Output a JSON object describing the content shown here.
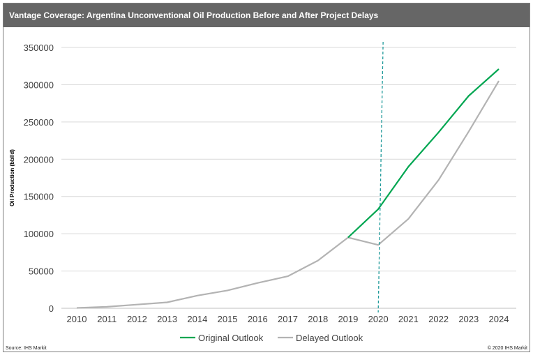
{
  "header": {
    "title": "Vantage Coverage: Argentina Unconventional Oil Production Before and After Project Delays"
  },
  "footer": {
    "source": "Source: IHS Markit",
    "copyright": "© 2020 IHS Markit"
  },
  "chart_data": {
    "type": "line",
    "title": "",
    "xlabel": "",
    "ylabel": "Oil Production (bbl/d)",
    "ylim": [
      0,
      350000
    ],
    "yticks": [
      0,
      50000,
      100000,
      150000,
      200000,
      250000,
      300000,
      350000
    ],
    "ytick_labels": [
      "0",
      "50000",
      "100000",
      "150000",
      "200000",
      "250000",
      "300000",
      "350000"
    ],
    "x": [
      "2010",
      "2011",
      "2012",
      "2013",
      "2014",
      "2015",
      "2016",
      "2017",
      "2018",
      "2019",
      "2020",
      "2021",
      "2022",
      "2023",
      "2024"
    ],
    "grid": true,
    "legend": "bottom",
    "series": [
      {
        "name": "Original Outlook",
        "color": "#00a651",
        "values": [
          null,
          null,
          null,
          null,
          null,
          null,
          null,
          null,
          null,
          95000,
          133000,
          190000,
          236000,
          285000,
          321000
        ]
      },
      {
        "name": "Delayed Outlook",
        "color": "#b3b3b3",
        "values": [
          500,
          2000,
          5000,
          8000,
          17000,
          24000,
          34000,
          43000,
          64000,
          95000,
          85000,
          120000,
          172000,
          237000,
          305000
        ]
      }
    ],
    "marker_line": {
      "x": "2020",
      "color": "#1f9a9a",
      "style": "dashed"
    }
  }
}
